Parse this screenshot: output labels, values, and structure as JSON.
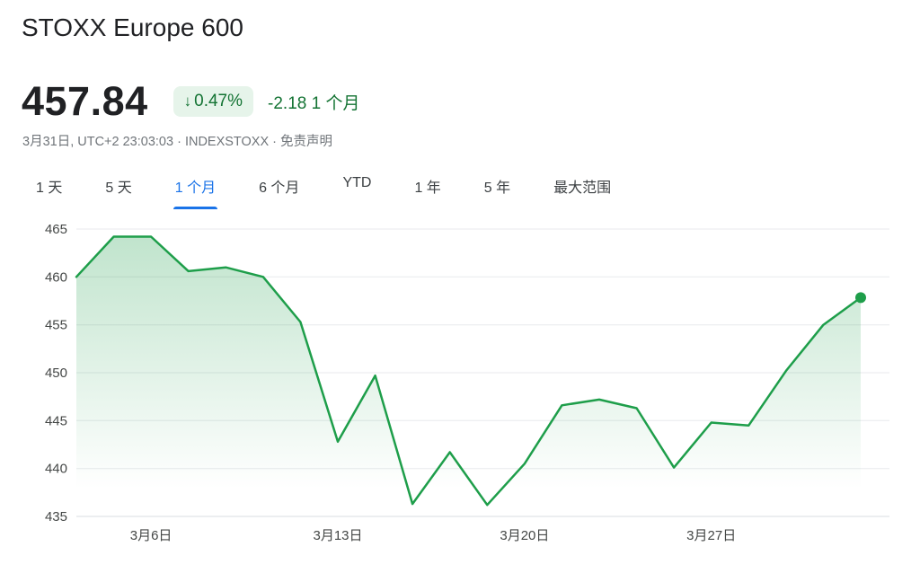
{
  "header": {
    "title": "STOXX Europe 600"
  },
  "quote": {
    "price": "457.84",
    "badge_arrow": "↓",
    "badge_value": "0.47%",
    "change_text": "-2.18 1 个月",
    "meta_prefix": "3月31日, UTC+2 23:03:03 · INDEXSTOXX · ",
    "disclaimer": "免责声明"
  },
  "tabs": [
    {
      "label": "1 天",
      "active": false
    },
    {
      "label": "5 天",
      "active": false
    },
    {
      "label": "1 个月",
      "active": true
    },
    {
      "label": "6 个月",
      "active": false
    },
    {
      "label": "YTD",
      "active": false
    },
    {
      "label": "1 年",
      "active": false
    },
    {
      "label": "5 年",
      "active": false
    },
    {
      "label": "最大范围",
      "active": false
    }
  ],
  "chart_data": {
    "type": "line",
    "title": "STOXX Europe 600 — 1 个月",
    "series_name": "STOXX Europe 600",
    "values": [
      460.0,
      464.2,
      464.2,
      460.6,
      461.0,
      460.0,
      455.3,
      442.8,
      449.7,
      436.3,
      441.7,
      436.2,
      440.5,
      446.6,
      447.2,
      446.3,
      440.1,
      444.8,
      444.5,
      450.2,
      455.0,
      457.84
    ],
    "last_value": 457.84,
    "ylim": [
      435,
      465
    ],
    "yticks": [
      435,
      440,
      445,
      450,
      455,
      460,
      465
    ],
    "x_ticks": [
      {
        "index": 2,
        "label": "3月6日"
      },
      {
        "index": 7,
        "label": "3月13日"
      },
      {
        "index": 12,
        "label": "3月20日"
      },
      {
        "index": 17,
        "label": "3月27日"
      }
    ],
    "grid": true,
    "legend": "none",
    "line_color": "#1e9e4a",
    "fill_from": "rgba(30,158,74,0.28)",
    "fill_to": "rgba(30,158,74,0)",
    "grid_color": "#e8eaed",
    "axis_color": "#dadce0",
    "tick_color": "#444746"
  }
}
